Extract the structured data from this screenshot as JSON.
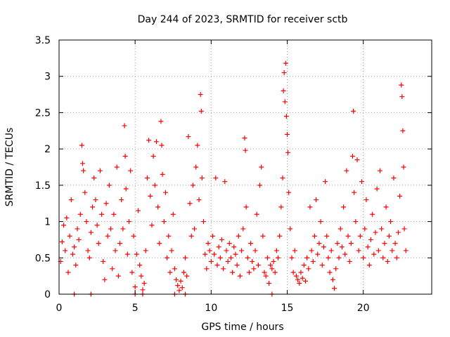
{
  "chart_data": {
    "type": "scatter",
    "title": "Day 244 of 2023, SRMTID for receiver sctb",
    "xlabel": "GPS time / hours",
    "ylabel": "SRMTID / TECUs",
    "xlim": [
      0,
      24.5
    ],
    "ylim": [
      0,
      3.5
    ],
    "x_ticks": [
      0,
      5,
      10,
      15,
      20
    ],
    "x_tick_labels": [
      "0",
      "5",
      "10",
      "15",
      "20"
    ],
    "y_ticks": [
      0,
      0.5,
      1,
      1.5,
      2,
      2.5,
      3,
      3.5
    ],
    "y_tick_labels": [
      "0",
      "0.5",
      "1",
      "1.5",
      "2",
      "2.5",
      "3",
      "3.5"
    ],
    "grid": true,
    "marker": "+",
    "series": [
      {
        "name": "SRMTID",
        "color": "#ff0000",
        "points": [
          [
            0.1,
            0.45
          ],
          [
            0.2,
            0.72
          ],
          [
            0.3,
            0.95
          ],
          [
            0.4,
            0.6
          ],
          [
            0.5,
            1.05
          ],
          [
            0.6,
            0.3
          ],
          [
            0.7,
            0.8
          ],
          [
            0.8,
            1.3
          ],
          [
            0.9,
            0.55
          ],
          [
            1.0,
            0.65
          ],
          [
            1.1,
            0.4
          ],
          [
            1.2,
            0.9
          ],
          [
            1.3,
            0.75
          ],
          [
            1.4,
            1.1
          ],
          [
            1.5,
            2.05
          ],
          [
            1.55,
            1.8
          ],
          [
            1.6,
            1.7
          ],
          [
            1.7,
            1.4
          ],
          [
            1.8,
            1.0
          ],
          [
            1.9,
            0.6
          ],
          [
            2.0,
            0.5
          ],
          [
            2.1,
            0.85
          ],
          [
            2.2,
            1.2
          ],
          [
            2.3,
            1.6
          ],
          [
            2.4,
            1.3
          ],
          [
            2.5,
            0.95
          ],
          [
            2.6,
            0.7
          ],
          [
            2.7,
            1.7
          ],
          [
            2.8,
            1.1
          ],
          [
            2.9,
            0.45
          ],
          [
            3.0,
            0.2
          ],
          [
            3.1,
            1.25
          ],
          [
            3.2,
            0.8
          ],
          [
            3.3,
            1.5
          ],
          [
            3.4,
            0.9
          ],
          [
            3.5,
            0.35
          ],
          [
            3.6,
            1.1
          ],
          [
            3.7,
            0.6
          ],
          [
            3.8,
            1.75
          ],
          [
            3.9,
            0.25
          ],
          [
            4.0,
            0.7
          ],
          [
            4.1,
            1.3
          ],
          [
            4.2,
            0.9
          ],
          [
            4.3,
            2.32
          ],
          [
            4.35,
            1.9
          ],
          [
            4.4,
            1.45
          ],
          [
            4.5,
            0.55
          ],
          [
            4.6,
            1.0
          ],
          [
            4.7,
            1.7
          ],
          [
            4.8,
            0.3
          ],
          [
            4.9,
            0.8
          ],
          [
            5.0,
            0.1
          ],
          [
            5.1,
            0.55
          ],
          [
            5.2,
            1.15
          ],
          [
            5.3,
            0.4
          ],
          [
            5.4,
            0.25
          ],
          [
            5.5,
            0.06
          ],
          [
            5.6,
            0.15
          ],
          [
            5.7,
            0.6
          ],
          [
            5.8,
            1.6
          ],
          [
            5.9,
            2.12
          ],
          [
            6.0,
            1.35
          ],
          [
            6.1,
            0.95
          ],
          [
            6.2,
            1.9
          ],
          [
            6.3,
            1.5
          ],
          [
            6.4,
            2.1
          ],
          [
            6.5,
            1.2
          ],
          [
            6.6,
            0.7
          ],
          [
            6.7,
            2.38
          ],
          [
            6.75,
            2.05
          ],
          [
            6.8,
            1.65
          ],
          [
            6.9,
            1.0
          ],
          [
            7.0,
            1.4
          ],
          [
            7.1,
            0.5
          ],
          [
            7.2,
            0.8
          ],
          [
            7.3,
            0.3
          ],
          [
            7.4,
            0.6
          ],
          [
            7.5,
            1.1
          ],
          [
            7.6,
            0.35
          ],
          [
            7.7,
            0.2
          ],
          [
            7.8,
            0.12
          ],
          [
            7.9,
            0.05
          ],
          [
            8.0,
            0.18
          ],
          [
            8.1,
            0.09
          ],
          [
            8.2,
            0.3
          ],
          [
            8.3,
            0.5
          ],
          [
            8.4,
            0.25
          ],
          [
            8.5,
            2.17
          ],
          [
            8.6,
            1.25
          ],
          [
            8.7,
            0.8
          ],
          [
            8.8,
            1.5
          ],
          [
            8.9,
            0.9
          ],
          [
            9.0,
            1.75
          ],
          [
            9.1,
            2.05
          ],
          [
            9.2,
            1.3
          ],
          [
            9.3,
            2.75
          ],
          [
            9.35,
            2.52
          ],
          [
            9.4,
            1.6
          ],
          [
            9.5,
            1.0
          ],
          [
            9.6,
            0.55
          ],
          [
            9.7,
            0.35
          ],
          [
            9.8,
            0.7
          ],
          [
            9.9,
            0.6
          ],
          [
            10.0,
            0.45
          ],
          [
            10.1,
            0.8
          ],
          [
            10.2,
            0.55
          ],
          [
            10.3,
            1.6
          ],
          [
            10.4,
            0.4
          ],
          [
            10.5,
            0.65
          ],
          [
            10.6,
            0.5
          ],
          [
            10.7,
            0.75
          ],
          [
            10.8,
            0.35
          ],
          [
            10.9,
            1.55
          ],
          [
            11.0,
            0.6
          ],
          [
            11.1,
            0.45
          ],
          [
            11.2,
            0.7
          ],
          [
            11.3,
            0.5
          ],
          [
            11.4,
            0.3
          ],
          [
            11.5,
            0.65
          ],
          [
            11.6,
            0.55
          ],
          [
            11.7,
            0.4
          ],
          [
            11.8,
            0.8
          ],
          [
            11.9,
            0.25
          ],
          [
            12.0,
            0.6
          ],
          [
            12.1,
            0.9
          ],
          [
            12.2,
            2.15
          ],
          [
            12.25,
            1.98
          ],
          [
            12.3,
            1.2
          ],
          [
            12.4,
            0.5
          ],
          [
            12.5,
            0.3
          ],
          [
            12.6,
            0.7
          ],
          [
            12.7,
            0.45
          ],
          [
            12.8,
            0.35
          ],
          [
            12.9,
            0.6
          ],
          [
            13.0,
            1.1
          ],
          [
            13.1,
            0.4
          ],
          [
            13.2,
            1.5
          ],
          [
            13.3,
            1.75
          ],
          [
            13.4,
            0.8
          ],
          [
            13.5,
            0.3
          ],
          [
            13.6,
            0.25
          ],
          [
            13.7,
            0.5
          ],
          [
            13.8,
            0.15
          ],
          [
            13.9,
            0.4
          ],
          [
            14.0,
            0.35
          ],
          [
            14.1,
            0.45
          ],
          [
            14.2,
            0.3
          ],
          [
            14.3,
            0.6
          ],
          [
            14.4,
            0.5
          ],
          [
            14.5,
            0.8
          ],
          [
            14.6,
            1.2
          ],
          [
            14.7,
            1.6
          ],
          [
            14.75,
            2.8
          ],
          [
            14.8,
            3.05
          ],
          [
            14.85,
            2.65
          ],
          [
            14.9,
            3.18
          ],
          [
            14.95,
            2.45
          ],
          [
            15.0,
            2.2
          ],
          [
            15.05,
            1.95
          ],
          [
            15.1,
            1.4
          ],
          [
            15.2,
            0.9
          ],
          [
            15.3,
            0.5
          ],
          [
            15.4,
            0.3
          ],
          [
            15.5,
            0.6
          ],
          [
            15.6,
            0.25
          ],
          [
            15.7,
            0.2
          ],
          [
            15.8,
            0.15
          ],
          [
            15.9,
            0.3
          ],
          [
            16.0,
            0.22
          ],
          [
            16.1,
            0.4
          ],
          [
            16.2,
            0.18
          ],
          [
            16.3,
            0.5
          ],
          [
            16.4,
            0.35
          ],
          [
            16.5,
            1.2
          ],
          [
            16.6,
            0.6
          ],
          [
            16.7,
            0.45
          ],
          [
            16.8,
            0.8
          ],
          [
            16.9,
            1.3
          ],
          [
            17.0,
            0.55
          ],
          [
            17.1,
            0.7
          ],
          [
            17.2,
            1.0
          ],
          [
            17.3,
            0.4
          ],
          [
            17.4,
            0.65
          ],
          [
            17.5,
            1.55
          ],
          [
            17.6,
            0.8
          ],
          [
            17.7,
            0.5
          ],
          [
            17.8,
            0.3
          ],
          [
            17.9,
            0.6
          ],
          [
            18.0,
            0.2
          ],
          [
            18.1,
            0.08
          ],
          [
            18.2,
            0.35
          ],
          [
            18.3,
            0.7
          ],
          [
            18.4,
            0.5
          ],
          [
            18.5,
            0.9
          ],
          [
            18.6,
            0.65
          ],
          [
            18.7,
            1.2
          ],
          [
            18.8,
            0.55
          ],
          [
            18.9,
            1.7
          ],
          [
            19.0,
            0.8
          ],
          [
            19.1,
            0.45
          ],
          [
            19.2,
            0.7
          ],
          [
            19.3,
            1.9
          ],
          [
            19.35,
            2.52
          ],
          [
            19.4,
            1.4
          ],
          [
            19.5,
            1.0
          ],
          [
            19.6,
            1.85
          ],
          [
            19.7,
            0.6
          ],
          [
            19.8,
            0.8
          ],
          [
            19.9,
            1.55
          ],
          [
            20.0,
            0.5
          ],
          [
            20.1,
            0.9
          ],
          [
            20.2,
            1.3
          ],
          [
            20.3,
            0.65
          ],
          [
            20.4,
            0.4
          ],
          [
            20.5,
            0.75
          ],
          [
            20.6,
            1.1
          ],
          [
            20.7,
            0.55
          ],
          [
            20.8,
            0.85
          ],
          [
            20.9,
            1.45
          ],
          [
            21.0,
            0.6
          ],
          [
            21.1,
            1.7
          ],
          [
            21.2,
            0.9
          ],
          [
            21.3,
            0.5
          ],
          [
            21.4,
            0.7
          ],
          [
            21.5,
            1.2
          ],
          [
            21.6,
            0.45
          ],
          [
            21.7,
            0.8
          ],
          [
            21.8,
            1.0
          ],
          [
            21.9,
            0.6
          ],
          [
            22.0,
            1.6
          ],
          [
            22.1,
            0.7
          ],
          [
            22.2,
            0.5
          ],
          [
            22.3,
            0.85
          ],
          [
            22.4,
            1.35
          ],
          [
            22.5,
            2.88
          ],
          [
            22.55,
            2.72
          ],
          [
            22.6,
            2.25
          ],
          [
            22.65,
            1.75
          ],
          [
            22.7,
            0.9
          ],
          [
            22.8,
            0.6
          ],
          [
            1.0,
            0.0
          ],
          [
            2.1,
            0.0
          ],
          [
            5.0,
            0.0
          ],
          [
            5.5,
            0.0
          ],
          [
            7.6,
            0.0
          ],
          [
            8.3,
            0.0
          ],
          [
            14.0,
            0.0
          ]
        ]
      }
    ]
  }
}
